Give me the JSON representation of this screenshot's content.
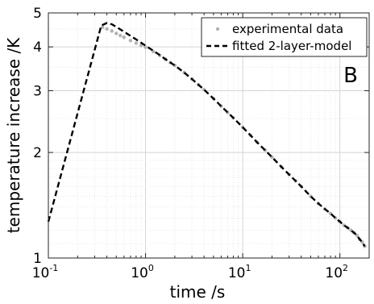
{
  "chart_data": {
    "type": "line",
    "title": "",
    "panel_label": "B",
    "xlabel": "time /s",
    "ylabel": "temperature increase /K",
    "xscale": "log",
    "yscale": "log",
    "xlim": [
      0.1,
      200
    ],
    "ylim": [
      1,
      5
    ],
    "grid": true,
    "legend_position": "top-right",
    "x_ticks": [
      {
        "base": "10",
        "exp": "-1",
        "value": 0.1
      },
      {
        "base": "10",
        "exp": "0",
        "value": 1
      },
      {
        "base": "10",
        "exp": "1",
        "value": 10
      },
      {
        "base": "10",
        "exp": "2",
        "value": 100
      }
    ],
    "y_ticks": [
      {
        "label": "1",
        "value": 1
      },
      {
        "label": "2",
        "value": 2
      },
      {
        "label": "3",
        "value": 3
      },
      {
        "label": "4",
        "value": 4
      },
      {
        "label": "5",
        "value": 5
      }
    ],
    "series": [
      {
        "name": "experimental data",
        "style": "dots",
        "color": "#b3b3b3",
        "x": [
          0.36,
          0.4,
          0.45,
          0.5,
          0.55,
          0.6,
          0.7,
          0.8,
          0.9,
          1.0,
          1.2,
          1.4,
          1.6,
          1.8,
          2.0,
          2.5,
          3.0,
          3.5,
          4.0,
          5.0,
          6.0,
          7.0,
          8.0,
          10,
          12,
          14,
          17,
          20,
          25,
          30,
          35,
          40,
          50,
          60,
          70,
          80,
          90,
          100,
          110,
          120,
          130,
          140,
          150,
          160,
          170,
          180
        ],
        "y": [
          4.55,
          4.5,
          4.44,
          4.37,
          4.31,
          4.26,
          4.17,
          4.1,
          4.04,
          3.99,
          3.88,
          3.78,
          3.69,
          3.61,
          3.54,
          3.38,
          3.24,
          3.12,
          3.02,
          2.85,
          2.71,
          2.6,
          2.51,
          2.36,
          2.24,
          2.14,
          2.03,
          1.94,
          1.82,
          1.73,
          1.66,
          1.6,
          1.5,
          1.43,
          1.38,
          1.34,
          1.3,
          1.27,
          1.24,
          1.22,
          1.2,
          1.18,
          1.16,
          1.13,
          1.11,
          1.08
        ]
      },
      {
        "name": "fitted 2-layer-model",
        "style": "dashed",
        "color": "#000000",
        "x": [
          0.1,
          0.35,
          0.4,
          0.45,
          0.5,
          0.6,
          0.7,
          0.8,
          0.9,
          1.0,
          1.2,
          1.4,
          1.6,
          1.8,
          2.0,
          2.5,
          3.0,
          3.5,
          4.0,
          5.0,
          6.0,
          7.0,
          8.0,
          10,
          12,
          14,
          17,
          20,
          25,
          30,
          35,
          40,
          50,
          60,
          70,
          80,
          90,
          100,
          110,
          120,
          130,
          140,
          150,
          160,
          170,
          180
        ],
        "y": [
          1.27,
          4.6,
          4.68,
          4.64,
          4.56,
          4.42,
          4.3,
          4.2,
          4.11,
          4.03,
          3.9,
          3.79,
          3.69,
          3.61,
          3.54,
          3.38,
          3.24,
          3.12,
          3.02,
          2.85,
          2.71,
          2.6,
          2.51,
          2.36,
          2.24,
          2.14,
          2.03,
          1.94,
          1.82,
          1.73,
          1.66,
          1.6,
          1.5,
          1.43,
          1.38,
          1.34,
          1.3,
          1.27,
          1.24,
          1.22,
          1.2,
          1.18,
          1.16,
          1.13,
          1.11,
          1.08
        ]
      }
    ]
  }
}
